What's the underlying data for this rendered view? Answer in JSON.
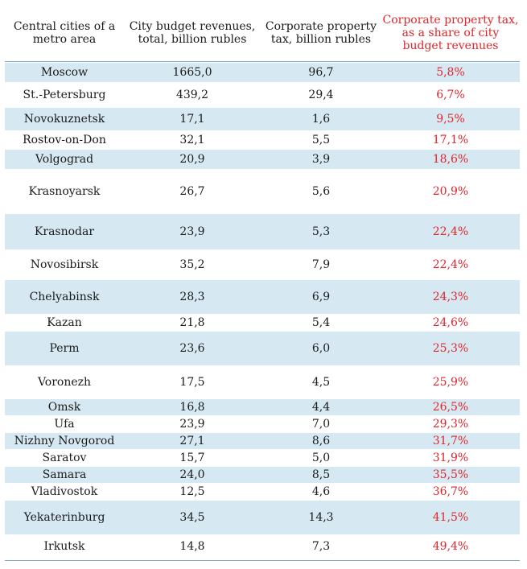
{
  "headers": {
    "city": "Central cities of a metro area",
    "budget": "City budget revenues, total, billion rubles",
    "tax": "Corporate property tax, billion rubles",
    "share": "Corporate property tax, as a share of city budget revenues"
  },
  "rows": [
    {
      "city": "Moscow",
      "budget": "1665,0",
      "tax": "96,7",
      "share": "5,8%"
    },
    {
      "city": "St.-Petersburg",
      "budget": "439,2",
      "tax": "29,4",
      "share": "6,7%"
    },
    {
      "city": "Novokuznetsk",
      "budget": "17,1",
      "tax": "1,6",
      "share": "9,5%"
    },
    {
      "city": "Rostov-on-Don",
      "budget": "32,1",
      "tax": "5,5",
      "share": "17,1%"
    },
    {
      "city": "Volgograd",
      "budget": "20,9",
      "tax": "3,9",
      "share": "18,6%"
    },
    {
      "city": "Krasnoyarsk",
      "budget": "26,7",
      "tax": "5,6",
      "share": "20,9%"
    },
    {
      "city": "Krasnodar",
      "budget": "23,9",
      "tax": "5,3",
      "share": "22,4%"
    },
    {
      "city": "Novosibirsk",
      "budget": "35,2",
      "tax": "7,9",
      "share": "22,4%"
    },
    {
      "city": "Chelyabinsk",
      "budget": "28,3",
      "tax": "6,9",
      "share": "24,3%"
    },
    {
      "city": "Kazan",
      "budget": "21,8",
      "tax": "5,4",
      "share": "24,6%"
    },
    {
      "city": "Perm",
      "budget": "23,6",
      "tax": "6,0",
      "share": "25,3%"
    },
    {
      "city": "Voronezh",
      "budget": "17,5",
      "tax": "4,5",
      "share": "25,9%"
    },
    {
      "city": "Omsk",
      "budget": "16,8",
      "tax": "4,4",
      "share": "26,5%"
    },
    {
      "city": "Ufa",
      "budget": "23,9",
      "tax": "7,0",
      "share": "29,3%"
    },
    {
      "city": "Nizhny Novgorod",
      "budget": "27,1",
      "tax": "8,6",
      "share": "31,7%"
    },
    {
      "city": "Saratov",
      "budget": "15,7",
      "tax": "5,0",
      "share": "31,9%"
    },
    {
      "city": "Samara",
      "budget": "24,0",
      "tax": "8,5",
      "share": "35,5%"
    },
    {
      "city": "Vladivostok",
      "budget": "12,5",
      "tax": "4,6",
      "share": "36,7%"
    },
    {
      "city": "Yekaterinburg",
      "budget": "34,5",
      "tax": "14,3",
      "share": "41,5%"
    },
    {
      "city": "Irkutsk",
      "budget": "14,8",
      "tax": "7,3",
      "share": "49,4%"
    }
  ],
  "colors": {
    "share_text": "#e0252b",
    "row_shade": "#d6e9f2",
    "rule": "#7fa8bf"
  }
}
